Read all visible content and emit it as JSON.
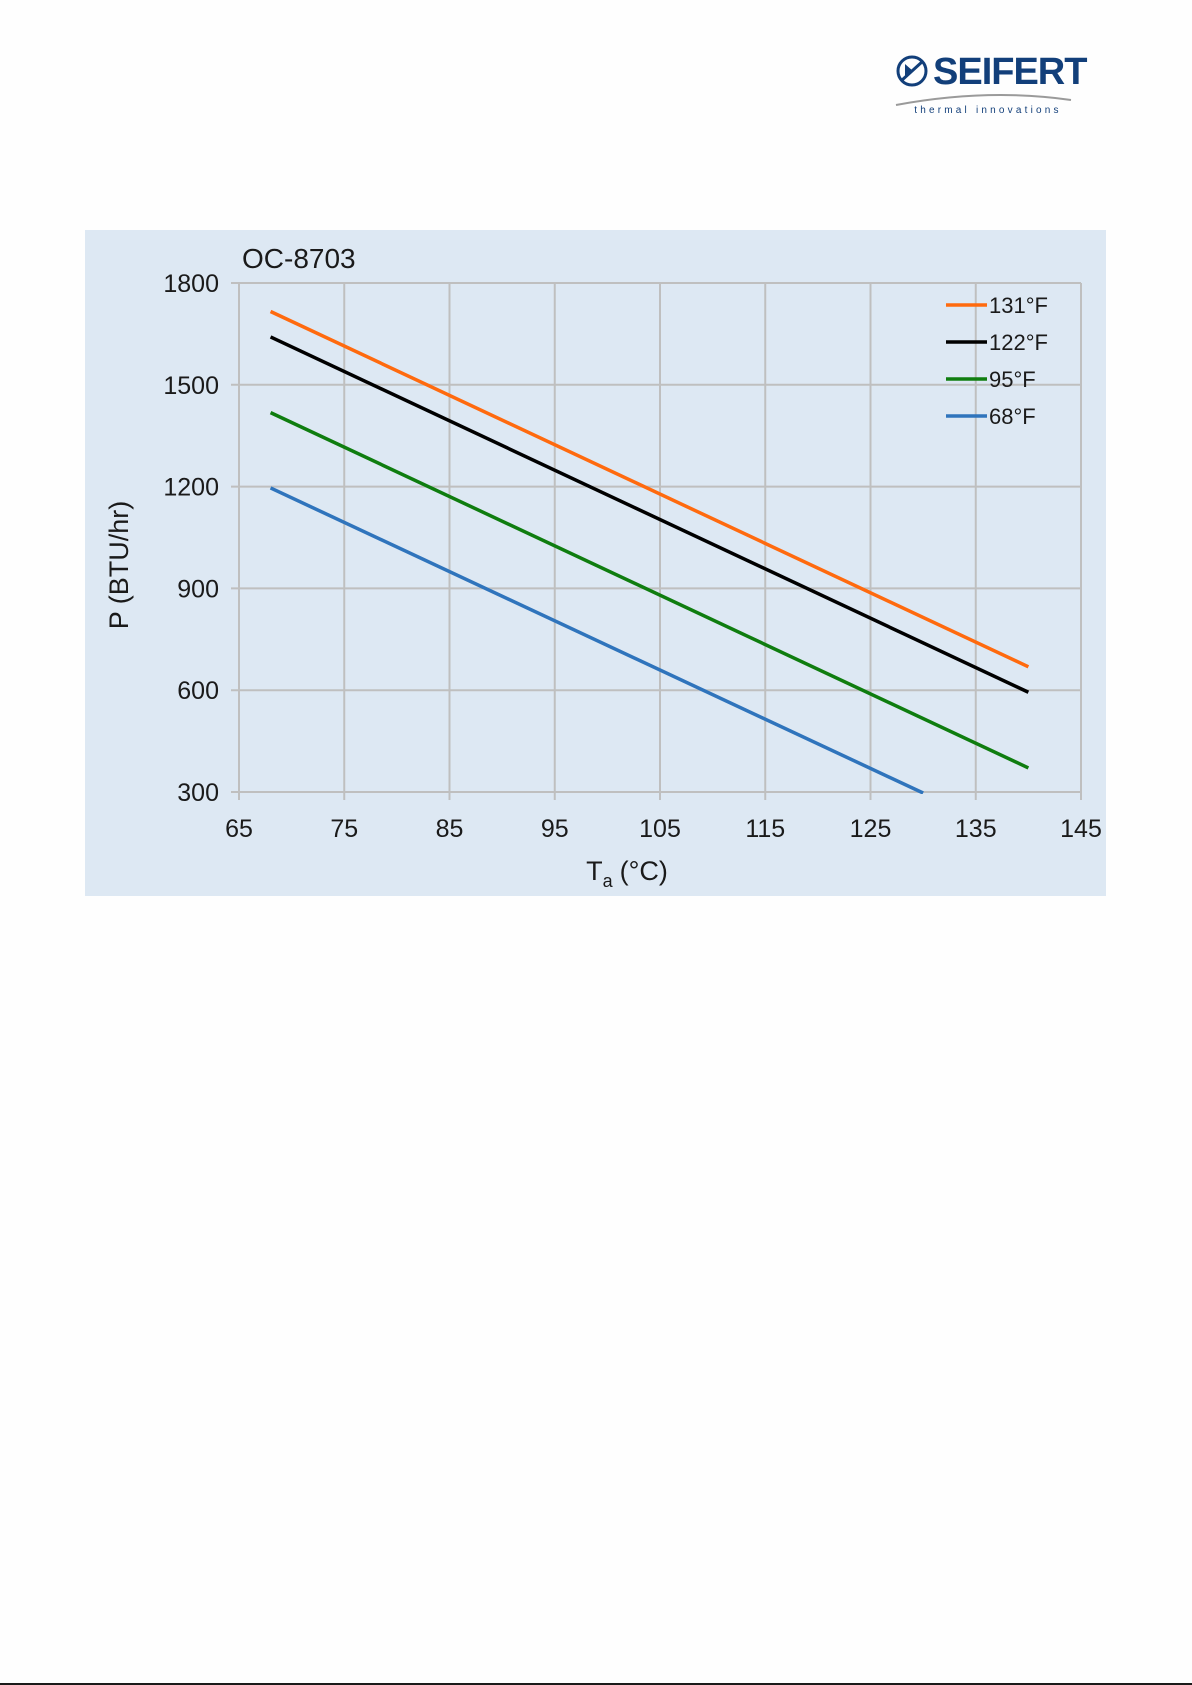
{
  "logo": {
    "name": "SEIFERT",
    "tagline": "thermal innovations",
    "color": "#123f7a"
  },
  "chart_data": {
    "type": "line",
    "title": "OC-8703",
    "xlabel": "T",
    "xlabel_subscript": "a",
    "xlabel_unit": "(°C)",
    "ylabel": "P (BTU/hr)",
    "xlim": [
      65,
      145
    ],
    "ylim": [
      300,
      1800
    ],
    "xticks": [
      65,
      75,
      85,
      95,
      105,
      115,
      125,
      135,
      145
    ],
    "yticks": [
      300,
      600,
      900,
      1200,
      1500,
      1800
    ],
    "grid": true,
    "legend_position": "top-right",
    "background": "#dde8f3",
    "series": [
      {
        "name": "131°F",
        "color": "#ff6a0e",
        "x": [
          68,
          140
        ],
        "y": [
          1716,
          669
        ]
      },
      {
        "name": "122°F",
        "color": "#000000",
        "x": [
          68,
          140
        ],
        "y": [
          1641,
          594
        ]
      },
      {
        "name": "95°F",
        "color": "#0f7d0f",
        "x": [
          68,
          140
        ],
        "y": [
          1418,
          371
        ]
      },
      {
        "name": "68°F",
        "color": "#2f74bc",
        "x": [
          68,
          130
        ],
        "y": [
          1196,
          297
        ]
      }
    ]
  }
}
